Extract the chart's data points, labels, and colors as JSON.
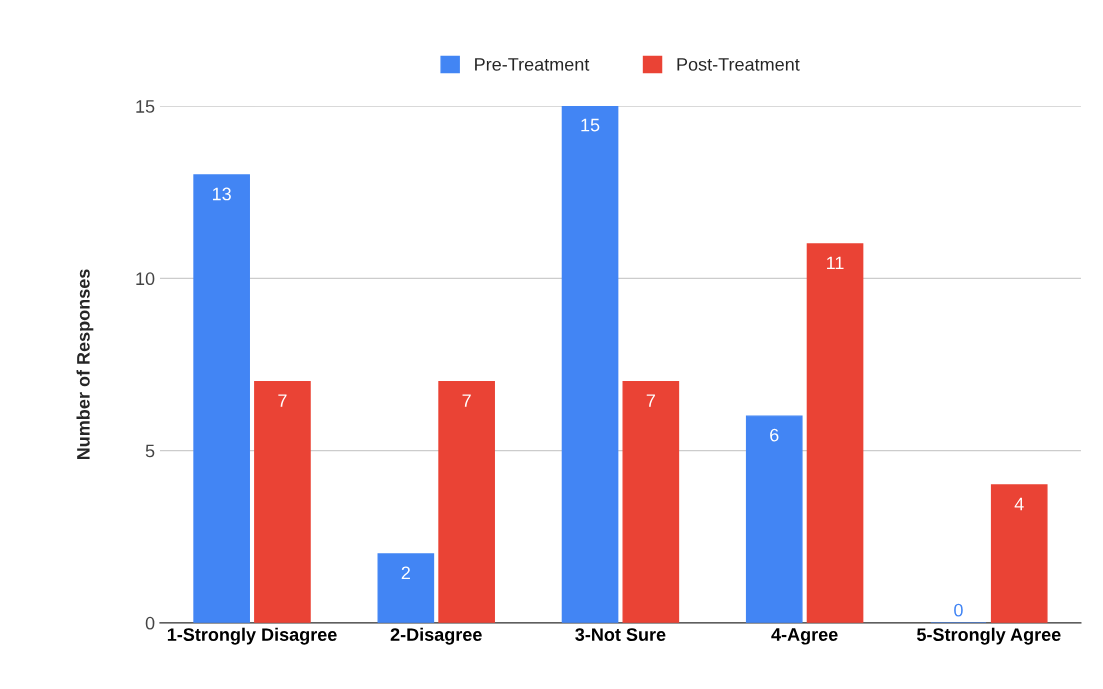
{
  "chart_data": {
    "type": "bar",
    "ylabel": "Number of Responses",
    "categories": [
      "1-Strongly Disagree",
      "2-Disagree",
      "3-Not Sure",
      "4-Agree",
      "5-Strongly Agree"
    ],
    "series": [
      {
        "name": "Pre-Treatment",
        "color": "#4285f4",
        "values": [
          13,
          2,
          15,
          6,
          0
        ]
      },
      {
        "name": "Post-Treatment",
        "color": "#ea4335",
        "values": [
          7,
          7,
          7,
          11,
          4
        ]
      }
    ],
    "ylim": [
      0,
      15
    ],
    "yticks": [
      0,
      5,
      10,
      15
    ],
    "grid": "y",
    "legend": "top",
    "data_labels": true
  }
}
